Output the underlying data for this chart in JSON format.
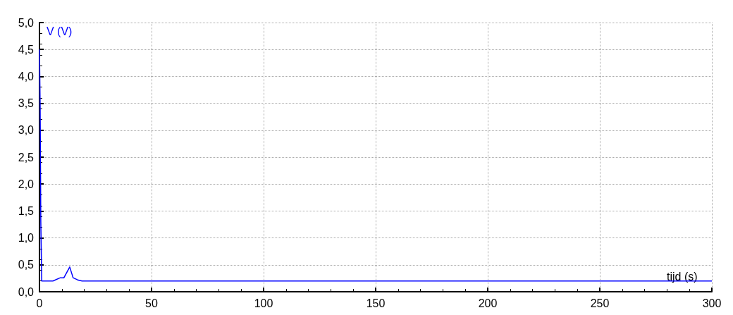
{
  "chart_data": {
    "type": "line",
    "xlabel": "tijd (s)",
    "ylabel": "V (V)",
    "x": [
      0,
      0.3,
      0.6,
      1,
      6,
      9.3,
      10.9,
      13.5,
      15,
      17,
      19,
      300
    ],
    "series": [
      {
        "color": "#0000ff",
        "values": [
          4.5,
          3.45,
          1.3,
          0.2,
          0.2,
          0.26,
          0.26,
          0.46,
          0.26,
          0.22,
          0.2,
          0.2
        ]
      }
    ],
    "xlim": [
      0,
      300
    ],
    "xticks": [
      0,
      50,
      100,
      150,
      200,
      250,
      300
    ],
    "ylim": [
      0,
      5
    ],
    "yticks": [
      {
        "value": 0,
        "label": "0,0"
      },
      {
        "value": 0.5,
        "label": "0,5"
      },
      {
        "value": 1,
        "label": "1,0"
      },
      {
        "value": 1.5,
        "label": "1,5"
      },
      {
        "value": 2,
        "label": "2,0"
      },
      {
        "value": 2.5,
        "label": "2,5"
      },
      {
        "value": 3,
        "label": "3,0"
      },
      {
        "value": 3.5,
        "label": "3,5"
      },
      {
        "value": 4,
        "label": "4,0"
      },
      {
        "value": 4.5,
        "label": "4,5"
      },
      {
        "value": 5,
        "label": "5,0"
      }
    ],
    "grid": true,
    "marker": "none",
    "line_style": "solid"
  }
}
